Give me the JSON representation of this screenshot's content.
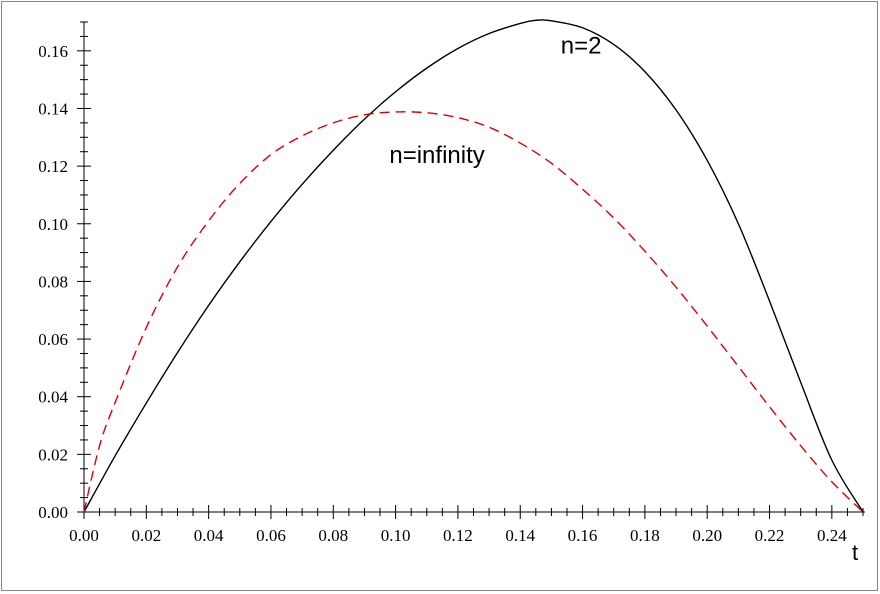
{
  "chart_data": {
    "type": "line",
    "title": "",
    "xlabel": "t",
    "ylabel": "",
    "xlim": [
      0,
      0.25
    ],
    "ylim": [
      0,
      0.17
    ],
    "xticks": [
      0.0,
      0.02,
      0.04,
      0.06,
      0.08,
      0.1,
      0.12,
      0.14,
      0.16,
      0.18,
      0.2,
      0.22,
      0.24
    ],
    "xtick_labels": [
      "0.00",
      "0.02",
      "0.04",
      "0.06",
      "0.08",
      "0.10",
      "0.12",
      "0.14",
      "0.16",
      "0.18",
      "0.20",
      "0.22",
      "0.24"
    ],
    "yticks": [
      0.0,
      0.02,
      0.04,
      0.06,
      0.08,
      0.1,
      0.12,
      0.14,
      0.16
    ],
    "ytick_labels": [
      "0.00",
      "0.02",
      "0.04",
      "0.06",
      "0.08",
      "0.10",
      "0.12",
      "0.14",
      "0.16"
    ],
    "grid": false,
    "legend": "none",
    "series": [
      {
        "color": "#000000",
        "style": "solid",
        "x": [
          0,
          0.01,
          0.02,
          0.03,
          0.04,
          0.05,
          0.06,
          0.07,
          0.08,
          0.09,
          0.1,
          0.11,
          0.12,
          0.13,
          0.14,
          0.145,
          0.15,
          0.16,
          0.17,
          0.18,
          0.19,
          0.2,
          0.21,
          0.22,
          0.23,
          0.24,
          0.25
        ],
        "y": [
          0,
          0.0195,
          0.0378,
          0.0553,
          0.0717,
          0.0868,
          0.1008,
          0.1137,
          0.1255,
          0.1363,
          0.1458,
          0.154,
          0.1608,
          0.166,
          0.1695,
          0.1706,
          0.1704,
          0.168,
          0.1622,
          0.1528,
          0.1395,
          0.122,
          0.1,
          0.0732,
          0.045,
          0.018,
          0
        ]
      },
      {
        "color": "#dd0000",
        "style": "dashed",
        "x": [
          0,
          0.005,
          0.01,
          0.02,
          0.03,
          0.04,
          0.05,
          0.06,
          0.07,
          0.08,
          0.09,
          0.1,
          0.11,
          0.12,
          0.13,
          0.14,
          0.15,
          0.16,
          0.17,
          0.18,
          0.19,
          0.2,
          0.21,
          0.22,
          0.23,
          0.24,
          0.25
        ],
        "y": [
          0,
          0.023,
          0.038,
          0.064,
          0.085,
          0.101,
          0.114,
          0.124,
          0.1305,
          0.135,
          0.1378,
          0.1388,
          0.1385,
          0.1368,
          0.1335,
          0.128,
          0.121,
          0.112,
          0.102,
          0.0905,
          0.078,
          0.0645,
          0.0505,
          0.0365,
          0.023,
          0.0105,
          0
        ]
      }
    ],
    "annotations": [
      {
        "text": "n=2",
        "x": 0.153,
        "y": 0.159
      },
      {
        "text": "n=infinity",
        "x": 0.098,
        "y": 0.121
      }
    ]
  }
}
